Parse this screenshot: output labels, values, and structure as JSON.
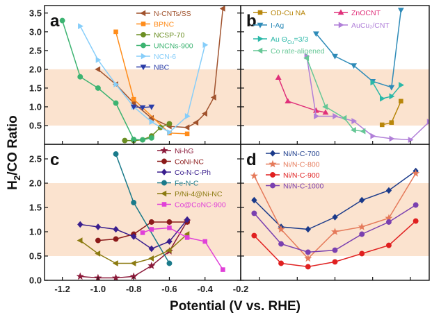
{
  "figure": {
    "ylabel_main": "H",
    "ylabel_sub": "2",
    "ylabel_rest": "/CO Ratio",
    "xlabel": "Potential (V vs. RHE)",
    "x_ticks": [
      "-1.2",
      "-1.0",
      "-0.8",
      "-0.6",
      "-0.4",
      "-0.2"
    ],
    "y_ticks_top": [
      "0.5",
      "1.0",
      "1.5",
      "2.0",
      "2.5",
      "3.0",
      "3.5"
    ],
    "y_ticks_bottom": [
      "0.0",
      "0.5",
      "1.0",
      "1.5",
      "2.0",
      "2.5"
    ],
    "band_color": "#fbe3cf"
  },
  "chart_data": [
    {
      "panel": "a",
      "type": "line",
      "band": [
        0.5,
        2.0
      ],
      "xlim": [
        -1.3,
        -0.2
      ],
      "ylim": [
        0.0,
        3.7
      ],
      "legend_position": "top-center",
      "series": [
        {
          "name": "N-CNTs/SS",
          "color": "#a0522d",
          "marker": "triangle-left",
          "x": [
            -1.0,
            -0.9,
            -0.8,
            -0.7,
            -0.6,
            -0.5,
            -0.45,
            -0.4,
            -0.35,
            -0.3
          ],
          "y": [
            2.0,
            1.6,
            1.1,
            0.7,
            0.48,
            0.45,
            0.58,
            0.82,
            1.25,
            3.62
          ]
        },
        {
          "name": "BPNC",
          "color": "#ff8c1a",
          "marker": "square",
          "x": [
            -0.9,
            -0.8,
            -0.6,
            -0.5
          ],
          "y": [
            3.0,
            1.2,
            0.3,
            0.28
          ]
        },
        {
          "name": "NCSP-70",
          "color": "#6b8e23",
          "marker": "circle",
          "x": [
            -0.85,
            -0.8,
            -0.75,
            -0.7,
            -0.65,
            -0.6
          ],
          "y": [
            0.1,
            0.1,
            0.12,
            0.22,
            0.45,
            0.55
          ]
        },
        {
          "name": "UNCNs-900",
          "color": "#3cb371",
          "marker": "circle",
          "x": [
            -1.2,
            -1.1,
            -1.0,
            -0.9,
            -0.8,
            -0.75,
            -0.7
          ],
          "y": [
            3.3,
            1.8,
            1.5,
            1.1,
            0.13,
            0.12,
            0.17
          ]
        },
        {
          "name": "NCN-6",
          "color": "#87cefa",
          "marker": "triangle-right",
          "x": [
            -1.1,
            -1.0,
            -0.9,
            -0.8,
            -0.7,
            -0.6,
            -0.5,
            -0.4
          ],
          "y": [
            3.15,
            2.25,
            1.6,
            1.0,
            0.6,
            0.32,
            0.75,
            2.65
          ]
        },
        {
          "name": "NBC",
          "color": "#2a3da8",
          "marker": "triangle-down",
          "x": [
            -0.8,
            -0.75,
            -0.7
          ],
          "y": [
            1.0,
            0.98,
            1.0
          ]
        }
      ]
    },
    {
      "panel": "b",
      "type": "line",
      "band": [
        0.5,
        2.0
      ],
      "xlim": [
        -1.3,
        -0.3
      ],
      "ylim": [
        0.0,
        3.7
      ],
      "legend_position": "top",
      "series": [
        {
          "name": "OD-Cu NA",
          "color": "#b8860b",
          "marker": "square",
          "x": [
            -0.55,
            -0.5,
            -0.45
          ],
          "y": [
            0.52,
            0.58,
            1.15
          ]
        },
        {
          "name": "ZnOCNT",
          "color": "#e0307a",
          "marker": "triangle-up",
          "x": [
            -1.1,
            -1.05,
            -0.9,
            -0.85
          ],
          "y": [
            1.78,
            1.15,
            0.9,
            0.85
          ]
        },
        {
          "name": "I-Ag",
          "color": "#2e8bb8",
          "marker": "triangle-down",
          "x": [
            -0.9,
            -0.8,
            -0.7,
            -0.6,
            -0.5,
            -0.45
          ],
          "y": [
            2.95,
            2.35,
            2.1,
            1.68,
            1.52,
            3.58
          ]
        },
        {
          "name": "AuCu₂/CNT",
          "color": "#b07fd8",
          "marker": "triangle-right",
          "x": [
            -0.95,
            -0.9,
            -0.8,
            -0.7,
            -0.6,
            -0.5,
            -0.4,
            -0.3
          ],
          "y": [
            2.35,
            0.75,
            0.75,
            0.62,
            0.22,
            0.15,
            0.12,
            0.6
          ]
        },
        {
          "name": "Au Θ",
          "name_sub": "Cu",
          "name_tail": "=3/3",
          "color": "#2bb8a8",
          "marker": "triangle-right",
          "x": [
            -0.6,
            -0.55,
            -0.5,
            -0.45
          ],
          "y": [
            1.65,
            1.22,
            1.28,
            1.58
          ]
        },
        {
          "name": "Co rate-aligened",
          "color": "#66c796",
          "marker": "triangle-left",
          "x": [
            -0.95,
            -0.85,
            -0.75,
            -0.7,
            -0.65
          ],
          "y": [
            2.3,
            1.0,
            0.7,
            0.38,
            0.35
          ]
        }
      ]
    },
    {
      "panel": "c",
      "type": "line",
      "band": [
        0.5,
        2.0
      ],
      "xlim": [
        -1.3,
        -0.2
      ],
      "ylim": [
        0.0,
        2.8
      ],
      "legend_position": "top-right",
      "series": [
        {
          "name": "Ni-hG",
          "color": "#8b1a3a",
          "marker": "star",
          "x": [
            -1.1,
            -1.0,
            -0.9,
            -0.8,
            -0.7,
            -0.6,
            -0.5
          ],
          "y": [
            0.08,
            0.05,
            0.05,
            0.08,
            0.3,
            0.6,
            1.22
          ]
        },
        {
          "name": "CoNi-NC",
          "color": "#8b1a1a",
          "marker": "circle",
          "x": [
            -1.0,
            -0.9,
            -0.8,
            -0.7,
            -0.6,
            -0.5
          ],
          "y": [
            0.82,
            0.85,
            0.95,
            1.2,
            1.2,
            1.2
          ]
        },
        {
          "name": "Co-N-C-Ph",
          "color": "#3a1f8e",
          "marker": "diamond",
          "x": [
            -1.1,
            -1.0,
            -0.9,
            -0.8,
            -0.7,
            -0.6,
            -0.5
          ],
          "y": [
            1.15,
            1.1,
            1.05,
            0.9,
            0.65,
            0.8,
            1.25
          ]
        },
        {
          "name": "Fe-N-C",
          "color": "#1a7a8a",
          "marker": "circle",
          "x": [
            -0.9,
            -0.8,
            -0.6
          ],
          "y": [
            2.6,
            1.6,
            0.35
          ]
        },
        {
          "name": "P/Ni-4@Ni-NC",
          "color": "#8b7a10",
          "marker": "triangle-left",
          "x": [
            -1.1,
            -1.0,
            -0.9,
            -0.8,
            -0.7,
            -0.6,
            -0.5
          ],
          "y": [
            0.82,
            0.55,
            0.35,
            0.35,
            0.45,
            0.62,
            0.95
          ]
        },
        {
          "name": "Co@CoNC-900",
          "color": "#e040d8",
          "marker": "square",
          "x": [
            -0.75,
            -0.7,
            -0.6,
            -0.5,
            -0.4,
            -0.3
          ],
          "y": [
            0.98,
            1.05,
            1.08,
            0.88,
            0.8,
            0.22
          ]
        }
      ]
    },
    {
      "panel": "d",
      "type": "line",
      "band": [
        0.5,
        2.0
      ],
      "xlim": [
        -1.35,
        -0.65
      ],
      "ylim": [
        0.0,
        2.8
      ],
      "legend_position": "top-left",
      "series": [
        {
          "name": "Ni/N-C-700",
          "color": "#1a3a8a",
          "marker": "diamond",
          "x": [
            -1.3,
            -1.2,
            -1.1,
            -1.0,
            -0.9,
            -0.8,
            -0.7
          ],
          "y": [
            1.65,
            1.1,
            1.05,
            1.3,
            1.65,
            1.85,
            2.25
          ]
        },
        {
          "name": "Ni/N-C-800",
          "color": "#e57a5a",
          "marker": "star",
          "x": [
            -1.3,
            -1.2,
            -1.1,
            -1.0,
            -0.9,
            -0.8,
            -0.7
          ],
          "y": [
            2.15,
            1.05,
            0.45,
            1.0,
            1.1,
            1.28,
            2.2
          ]
        },
        {
          "name": "Ni/N-C-900",
          "color": "#e02020",
          "marker": "circle",
          "x": [
            -1.3,
            -1.2,
            -1.1,
            -1.0,
            -0.9,
            -0.8,
            -0.7
          ],
          "y": [
            0.92,
            0.35,
            0.28,
            0.38,
            0.55,
            0.72,
            1.22
          ]
        },
        {
          "name": "Ni/N-C-1000",
          "color": "#7a40b0",
          "marker": "circle",
          "x": [
            -1.3,
            -1.2,
            -1.1,
            -1.0,
            -0.9,
            -0.8,
            -0.7
          ],
          "y": [
            1.38,
            0.75,
            0.58,
            0.62,
            0.95,
            1.2,
            1.55
          ]
        }
      ]
    }
  ]
}
